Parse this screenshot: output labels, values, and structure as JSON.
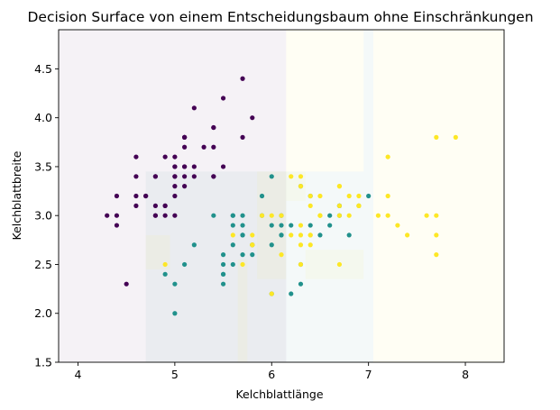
{
  "chart_data": {
    "type": "scatter",
    "title": "Decision Surface von einem Entscheidungsbaum ohne Einschränkungen",
    "xlabel": "Kelchblattlänge",
    "ylabel": "Kelchblattbreite",
    "xlim": [
      3.8,
      8.4
    ],
    "ylim": [
      1.5,
      4.9
    ],
    "xticks": [
      4,
      5,
      6,
      7,
      8
    ],
    "yticks": [
      1.5,
      2.0,
      2.5,
      3.0,
      3.5,
      4.0,
      4.5
    ],
    "grid": false,
    "legend": "none",
    "colors": {
      "class0": "#440154",
      "class1": "#21918c",
      "class2": "#fde725"
    },
    "regions": [
      {
        "class": 0,
        "x": [
          3.8,
          6.15
        ],
        "y": [
          1.5,
          4.9
        ]
      },
      {
        "class": 1,
        "x": [
          4.7,
          7.05
        ],
        "y": [
          1.5,
          3.45
        ]
      },
      {
        "class": 2,
        "x": [
          6.15,
          6.95
        ],
        "y": [
          3.45,
          4.9
        ]
      },
      {
        "class": 2,
        "x": [
          7.05,
          8.4
        ],
        "y": [
          1.5,
          4.9
        ]
      },
      {
        "class": 1,
        "x": [
          6.95,
          7.05
        ],
        "y": [
          3.45,
          4.9
        ]
      },
      {
        "class": 2,
        "x": [
          4.7,
          4.95
        ],
        "y": [
          2.45,
          2.8
        ]
      },
      {
        "class": 2,
        "x": [
          5.65,
          5.75
        ],
        "y": [
          1.5,
          2.55
        ]
      },
      {
        "class": 2,
        "x": [
          5.85,
          6.15
        ],
        "y": [
          2.35,
          3.45
        ]
      },
      {
        "class": 2,
        "x": [
          6.35,
          6.95
        ],
        "y": [
          2.35,
          2.65
        ]
      },
      {
        "class": 2,
        "x": [
          6.15,
          6.35
        ],
        "y": [
          3.15,
          3.45
        ]
      }
    ],
    "series": [
      {
        "class": 0,
        "points": [
          [
            5.1,
            3.5
          ],
          [
            4.9,
            3.0
          ],
          [
            4.7,
            3.2
          ],
          [
            4.6,
            3.1
          ],
          [
            5.0,
            3.6
          ],
          [
            5.4,
            3.9
          ],
          [
            4.6,
            3.4
          ],
          [
            5.0,
            3.4
          ],
          [
            4.4,
            2.9
          ],
          [
            4.9,
            3.1
          ],
          [
            5.4,
            3.7
          ],
          [
            4.8,
            3.4
          ],
          [
            4.8,
            3.0
          ],
          [
            4.3,
            3.0
          ],
          [
            5.8,
            4.0
          ],
          [
            5.7,
            4.4
          ],
          [
            5.4,
            3.9
          ],
          [
            5.1,
            3.5
          ],
          [
            5.7,
            3.8
          ],
          [
            5.1,
            3.8
          ],
          [
            5.4,
            3.4
          ],
          [
            5.1,
            3.7
          ],
          [
            4.6,
            3.6
          ],
          [
            5.1,
            3.3
          ],
          [
            4.8,
            3.4
          ],
          [
            5.0,
            3.0
          ],
          [
            5.0,
            3.4
          ],
          [
            5.2,
            3.5
          ],
          [
            5.2,
            3.4
          ],
          [
            4.7,
            3.2
          ],
          [
            4.8,
            3.1
          ],
          [
            5.4,
            3.4
          ],
          [
            5.2,
            4.1
          ],
          [
            5.5,
            4.2
          ],
          [
            4.9,
            3.1
          ],
          [
            5.0,
            3.2
          ],
          [
            5.5,
            3.5
          ],
          [
            4.9,
            3.6
          ],
          [
            4.4,
            3.0
          ],
          [
            5.1,
            3.4
          ],
          [
            5.0,
            3.5
          ],
          [
            4.5,
            2.3
          ],
          [
            4.4,
            3.2
          ],
          [
            5.0,
            3.5
          ],
          [
            5.1,
            3.8
          ],
          [
            4.8,
            3.0
          ],
          [
            5.1,
            3.8
          ],
          [
            4.6,
            3.2
          ],
          [
            5.3,
            3.7
          ],
          [
            5.0,
            3.3
          ]
        ]
      },
      {
        "class": 1,
        "points": [
          [
            7.0,
            3.2
          ],
          [
            6.4,
            3.2
          ],
          [
            6.9,
            3.1
          ],
          [
            5.5,
            2.3
          ],
          [
            6.5,
            2.8
          ],
          [
            5.7,
            2.8
          ],
          [
            6.3,
            3.3
          ],
          [
            4.9,
            2.4
          ],
          [
            6.6,
            2.9
          ],
          [
            5.2,
            2.7
          ],
          [
            5.0,
            2.0
          ],
          [
            5.9,
            3.0
          ],
          [
            6.0,
            2.2
          ],
          [
            6.1,
            2.9
          ],
          [
            5.6,
            2.9
          ],
          [
            6.7,
            3.1
          ],
          [
            5.6,
            3.0
          ],
          [
            5.8,
            2.7
          ],
          [
            6.2,
            2.2
          ],
          [
            5.6,
            2.5
          ],
          [
            5.9,
            3.2
          ],
          [
            6.1,
            2.8
          ],
          [
            6.3,
            2.5
          ],
          [
            6.1,
            2.8
          ],
          [
            6.4,
            2.9
          ],
          [
            6.6,
            3.0
          ],
          [
            6.8,
            2.8
          ],
          [
            6.7,
            3.0
          ],
          [
            6.0,
            2.9
          ],
          [
            5.7,
            2.6
          ],
          [
            5.5,
            2.4
          ],
          [
            5.5,
            2.4
          ],
          [
            5.8,
            2.7
          ],
          [
            6.0,
            2.7
          ],
          [
            5.4,
            3.0
          ],
          [
            6.0,
            3.4
          ],
          [
            6.7,
            3.1
          ],
          [
            6.3,
            2.3
          ],
          [
            5.6,
            3.0
          ],
          [
            5.5,
            2.5
          ],
          [
            5.5,
            2.6
          ],
          [
            6.1,
            3.0
          ],
          [
            5.8,
            2.6
          ],
          [
            5.0,
            2.3
          ],
          [
            5.6,
            2.7
          ],
          [
            5.7,
            3.0
          ],
          [
            5.7,
            2.9
          ],
          [
            6.2,
            2.9
          ],
          [
            5.1,
            2.5
          ],
          [
            5.7,
            2.8
          ]
        ]
      },
      {
        "class": 2,
        "points": [
          [
            6.3,
            3.3
          ],
          [
            5.8,
            2.7
          ],
          [
            7.1,
            3.0
          ],
          [
            6.3,
            2.9
          ],
          [
            6.5,
            3.0
          ],
          [
            7.6,
            3.0
          ],
          [
            4.9,
            2.5
          ],
          [
            7.3,
            2.9
          ],
          [
            6.7,
            2.5
          ],
          [
            7.2,
            3.6
          ],
          [
            6.5,
            3.2
          ],
          [
            6.4,
            2.7
          ],
          [
            6.8,
            3.0
          ],
          [
            5.7,
            2.5
          ],
          [
            5.8,
            2.8
          ],
          [
            6.4,
            3.2
          ],
          [
            6.5,
            3.0
          ],
          [
            7.7,
            3.8
          ],
          [
            7.7,
            2.6
          ],
          [
            6.0,
            2.2
          ],
          [
            6.9,
            3.2
          ],
          [
            5.6,
            2.8
          ],
          [
            7.7,
            2.8
          ],
          [
            6.3,
            2.7
          ],
          [
            6.7,
            3.3
          ],
          [
            7.2,
            3.2
          ],
          [
            6.2,
            2.8
          ],
          [
            6.1,
            3.0
          ],
          [
            6.4,
            2.8
          ],
          [
            7.2,
            3.0
          ],
          [
            7.4,
            2.8
          ],
          [
            7.9,
            3.8
          ],
          [
            6.4,
            2.8
          ],
          [
            6.3,
            2.8
          ],
          [
            6.1,
            2.6
          ],
          [
            7.7,
            3.0
          ],
          [
            6.3,
            3.4
          ],
          [
            6.4,
            3.1
          ],
          [
            6.0,
            3.0
          ],
          [
            6.9,
            3.1
          ],
          [
            6.7,
            3.1
          ],
          [
            6.9,
            3.1
          ],
          [
            5.8,
            2.7
          ],
          [
            6.8,
            3.2
          ],
          [
            6.7,
            3.3
          ],
          [
            6.7,
            3.0
          ],
          [
            6.3,
            2.5
          ],
          [
            6.5,
            3.0
          ],
          [
            6.2,
            3.4
          ],
          [
            5.9,
            3.0
          ]
        ]
      }
    ]
  }
}
